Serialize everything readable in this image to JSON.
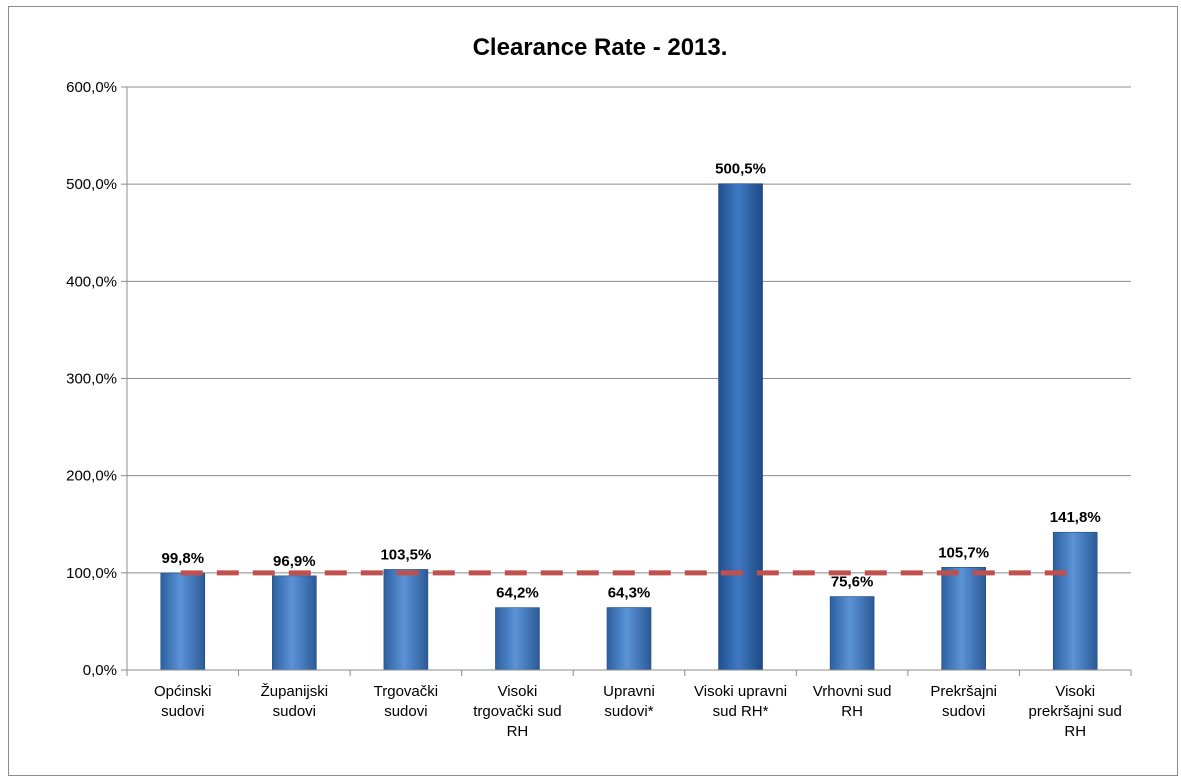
{
  "chart_data": {
    "type": "bar",
    "title": "Clearance Rate - 2013.",
    "xlabel": "",
    "ylabel": "",
    "ylim": [
      0,
      600
    ],
    "yticks": [
      0,
      100,
      200,
      300,
      400,
      500,
      600
    ],
    "ytick_labels": [
      "0,0%",
      "100,0%",
      "200,0%",
      "300,0%",
      "400,0%",
      "500,0%",
      "600,0%"
    ],
    "grid": true,
    "legend": "none",
    "categories": [
      [
        "Općinski",
        "sudovi"
      ],
      [
        "Županijski",
        "sudovi"
      ],
      [
        "Trgovački",
        "sudovi"
      ],
      [
        "Visoki",
        "trgovački sud",
        "RH"
      ],
      [
        "Upravni",
        "sudovi*"
      ],
      [
        "Visoki upravni",
        "sud RH*"
      ],
      [
        "Vrhovni sud",
        "RH"
      ],
      [
        "Prekršajni",
        "sudovi"
      ],
      [
        "Visoki",
        "prekršajni sud",
        "RH"
      ]
    ],
    "values": [
      99.8,
      96.9,
      103.5,
      64.2,
      64.3,
      500.5,
      75.6,
      105.7,
      141.8
    ],
    "data_labels": [
      "99,8%",
      "96,9%",
      "103,5%",
      "64,2%",
      "64,3%",
      "500,5%",
      "75,6%",
      "105,7%",
      "141,8%"
    ],
    "reference_line": {
      "value": 100,
      "style": "dashed",
      "color": "#c0504d"
    },
    "colors": {
      "bar": "#4f81bd",
      "bar_highlight": "#2f66b0"
    }
  }
}
